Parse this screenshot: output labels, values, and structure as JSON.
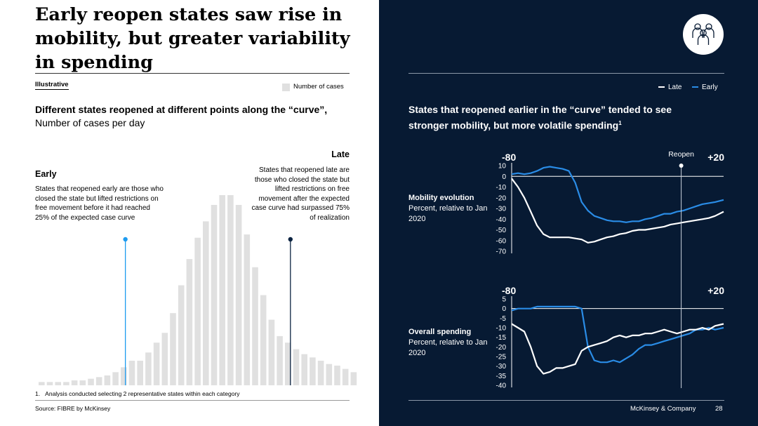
{
  "left": {
    "title": "Early reopen states saw rise in mobility, but greater variability in spending",
    "illustrative": "Illustrative",
    "legend_label": "Number of cases",
    "subtitle_bold": "Different states reopened at different points along the “curve”,",
    "subtitle_rest": " Number of cases per day",
    "early_heading": "Early",
    "early_text": "States that reopened early are those who closed the state but lifted restrictions on free movement before it had reached 25% of the expected case curve",
    "late_heading": "Late",
    "late_text": "States that reopened late are those who closed the state but lifted restrictions on free movement after the expected case curve had surpassed 75% of realization",
    "footnote": "1.   Analysis conducted selecting 2 representative states within each category",
    "source": "Source: FIBRE by McKinsey"
  },
  "right": {
    "icon": "people-icon",
    "legend_late": "Late",
    "legend_early": "Early",
    "subtitle": "States that reopened earlier in the “curve” tended to see stronger mobility, but more volatile spending",
    "subtitle_sup": "1",
    "mobility_label_bold": "Mobility evolution",
    "mobility_label_rest": "Percent, relative to Jan 2020",
    "spending_label_bold": "Overall spending",
    "spending_label_rest": "Percent, relative to Jan 2020",
    "company": "McKinsey & Company",
    "page_number": "28"
  },
  "colors": {
    "bar": "#e0e0e0",
    "early_marker": "#1e9cf0",
    "late_marker": "#0b2341",
    "dark_bg": "#071a33",
    "early_line": "#2a8ce6",
    "late_line": "#ffffff"
  },
  "chart_data": [
    {
      "type": "bar",
      "title": "Number of cases per day",
      "values": [
        2,
        2,
        2,
        2,
        3,
        3,
        4,
        5,
        6,
        8,
        11,
        15,
        15,
        20,
        26,
        32,
        44,
        61,
        77,
        90,
        100,
        110,
        116,
        116,
        110,
        92,
        72,
        55,
        40,
        30,
        26,
        22,
        19,
        17,
        15,
        13,
        12,
        10,
        8
      ],
      "markers": [
        {
          "label": "Early",
          "index": 10.2
        },
        {
          "label": "Late",
          "index": 30.3
        }
      ],
      "legend": [
        "Number of cases"
      ]
    },
    {
      "type": "line",
      "title": "Mobility evolution",
      "ylim": [
        -70,
        10
      ],
      "yticks": [
        10,
        0,
        -10,
        -20,
        -30,
        -40,
        -50,
        -60,
        -70
      ],
      "x_range_labels": [
        "-80",
        "+20"
      ],
      "reopen_label": "Reopen",
      "reopen_x": 0,
      "series": [
        {
          "name": "Late",
          "x": [
            -80,
            -77,
            -74,
            -71,
            -68,
            -65,
            -62,
            -59,
            -56,
            -53,
            -50,
            -47,
            -44,
            -41,
            -38,
            -35,
            -32,
            -29,
            -26,
            -23,
            -20,
            -17,
            -14,
            -11,
            -8,
            -5,
            -2,
            1,
            4,
            7,
            10,
            13,
            16,
            20
          ],
          "values": [
            -2,
            -10,
            -20,
            -33,
            -46,
            -54,
            -57,
            -57,
            -57,
            -57,
            -58,
            -59,
            -62,
            -61,
            -59,
            -57,
            -56,
            -54,
            -53,
            -51,
            -50,
            -50,
            -49,
            -48,
            -47,
            -45,
            -44,
            -43,
            -42,
            -41,
            -40,
            -39,
            -37,
            -33
          ]
        },
        {
          "name": "Early",
          "x": [
            -80,
            -77,
            -74,
            -71,
            -68,
            -65,
            -62,
            -59,
            -56,
            -53,
            -50,
            -47,
            -44,
            -41,
            -38,
            -35,
            -32,
            -29,
            -26,
            -23,
            -20,
            -17,
            -14,
            -11,
            -8,
            -5,
            -2,
            1,
            4,
            7,
            10,
            13,
            16,
            20
          ],
          "values": [
            2,
            3,
            2,
            3,
            5,
            8,
            9,
            8,
            7,
            5,
            -6,
            -24,
            -32,
            -37,
            -39,
            -41,
            -42,
            -42,
            -43,
            -42,
            -42,
            -40,
            -39,
            -37,
            -35,
            -35,
            -33,
            -32,
            -30,
            -28,
            -26,
            -25,
            -24,
            -22
          ]
        }
      ]
    },
    {
      "type": "line",
      "title": "Overall spending",
      "ylim": [
        -40,
        5
      ],
      "yticks": [
        5,
        0,
        -5,
        -10,
        -15,
        -20,
        -25,
        -30,
        -35,
        -40
      ],
      "x_range_labels": [
        "-80",
        "+20"
      ],
      "series": [
        {
          "name": "Late",
          "x": [
            -80,
            -77,
            -74,
            -71,
            -68,
            -65,
            -62,
            -59,
            -56,
            -53,
            -50,
            -47,
            -44,
            -41,
            -38,
            -35,
            -32,
            -29,
            -26,
            -23,
            -20,
            -17,
            -14,
            -11,
            -8,
            -5,
            -2,
            1,
            4,
            7,
            10,
            13,
            16,
            20
          ],
          "values": [
            -8,
            -10,
            -12,
            -20,
            -30,
            -34,
            -33,
            -31,
            -31,
            -30,
            -29,
            -22,
            -20,
            -19,
            -18,
            -17,
            -15,
            -14,
            -15,
            -14,
            -14,
            -13,
            -13,
            -12,
            -11,
            -12,
            -13,
            -12,
            -11,
            -11,
            -10,
            -11,
            -9,
            -8
          ]
        },
        {
          "name": "Early",
          "x": [
            -80,
            -77,
            -74,
            -71,
            -68,
            -65,
            -62,
            -59,
            -56,
            -53,
            -50,
            -47,
            -44,
            -41,
            -38,
            -35,
            -32,
            -29,
            -26,
            -23,
            -20,
            -17,
            -14,
            -11,
            -8,
            -5,
            -2,
            1,
            4,
            7,
            10,
            13,
            16,
            20
          ],
          "values": [
            -1,
            0,
            0,
            0,
            1,
            1,
            1,
            1,
            1,
            1,
            1,
            0,
            -20,
            -27,
            -28,
            -28,
            -27,
            -28,
            -26,
            -24,
            -21,
            -19,
            -19,
            -18,
            -17,
            -16,
            -15,
            -14,
            -13,
            -11,
            -11,
            -10,
            -11,
            -10
          ]
        }
      ]
    }
  ]
}
